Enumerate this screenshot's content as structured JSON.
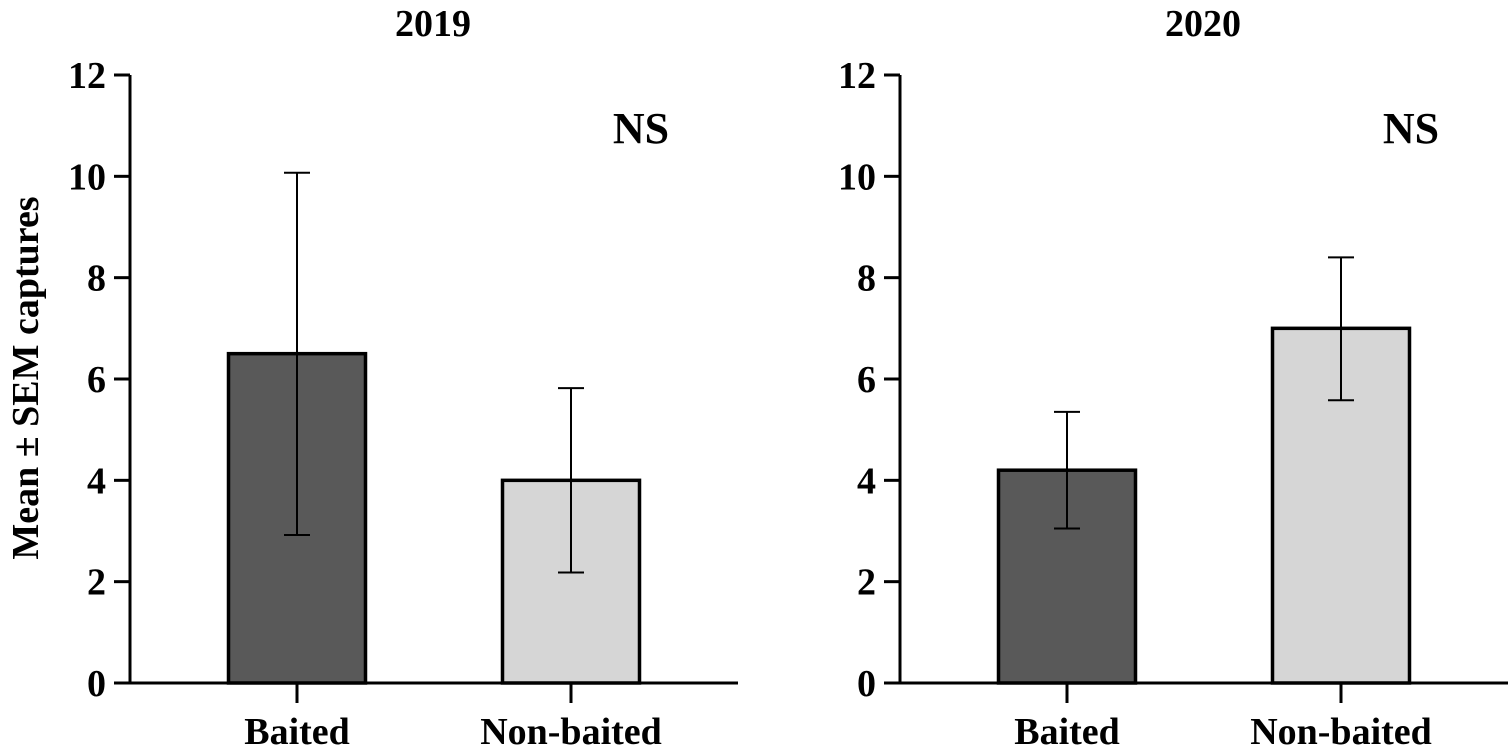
{
  "chart_data": [
    {
      "type": "bar",
      "title": "2019",
      "ylabel": "Mean ± SEM captures",
      "xlabel": "",
      "categories": [
        "Baited",
        "Non-baited"
      ],
      "values": [
        6.5,
        4.0
      ],
      "error_upper": [
        10.07,
        5.82
      ],
      "error_lower": [
        2.92,
        2.18
      ],
      "bar_colors": [
        "#595959",
        "#d6d6d6"
      ],
      "ylim": [
        0,
        12
      ],
      "yticks": [
        0,
        2,
        4,
        6,
        8,
        10,
        12
      ],
      "annotation": "NS",
      "grid": false
    },
    {
      "type": "bar",
      "title": "2020",
      "xlabel": "",
      "categories": [
        "Baited",
        "Non-baited"
      ],
      "values": [
        4.2,
        7.0
      ],
      "error_upper": [
        5.35,
        8.4
      ],
      "error_lower": [
        3.05,
        5.58
      ],
      "bar_colors": [
        "#595959",
        "#d6d6d6"
      ],
      "ylim": [
        0,
        12
      ],
      "yticks": [
        0,
        2,
        4,
        6,
        8,
        10,
        12
      ],
      "annotation": "NS",
      "grid": false
    }
  ]
}
